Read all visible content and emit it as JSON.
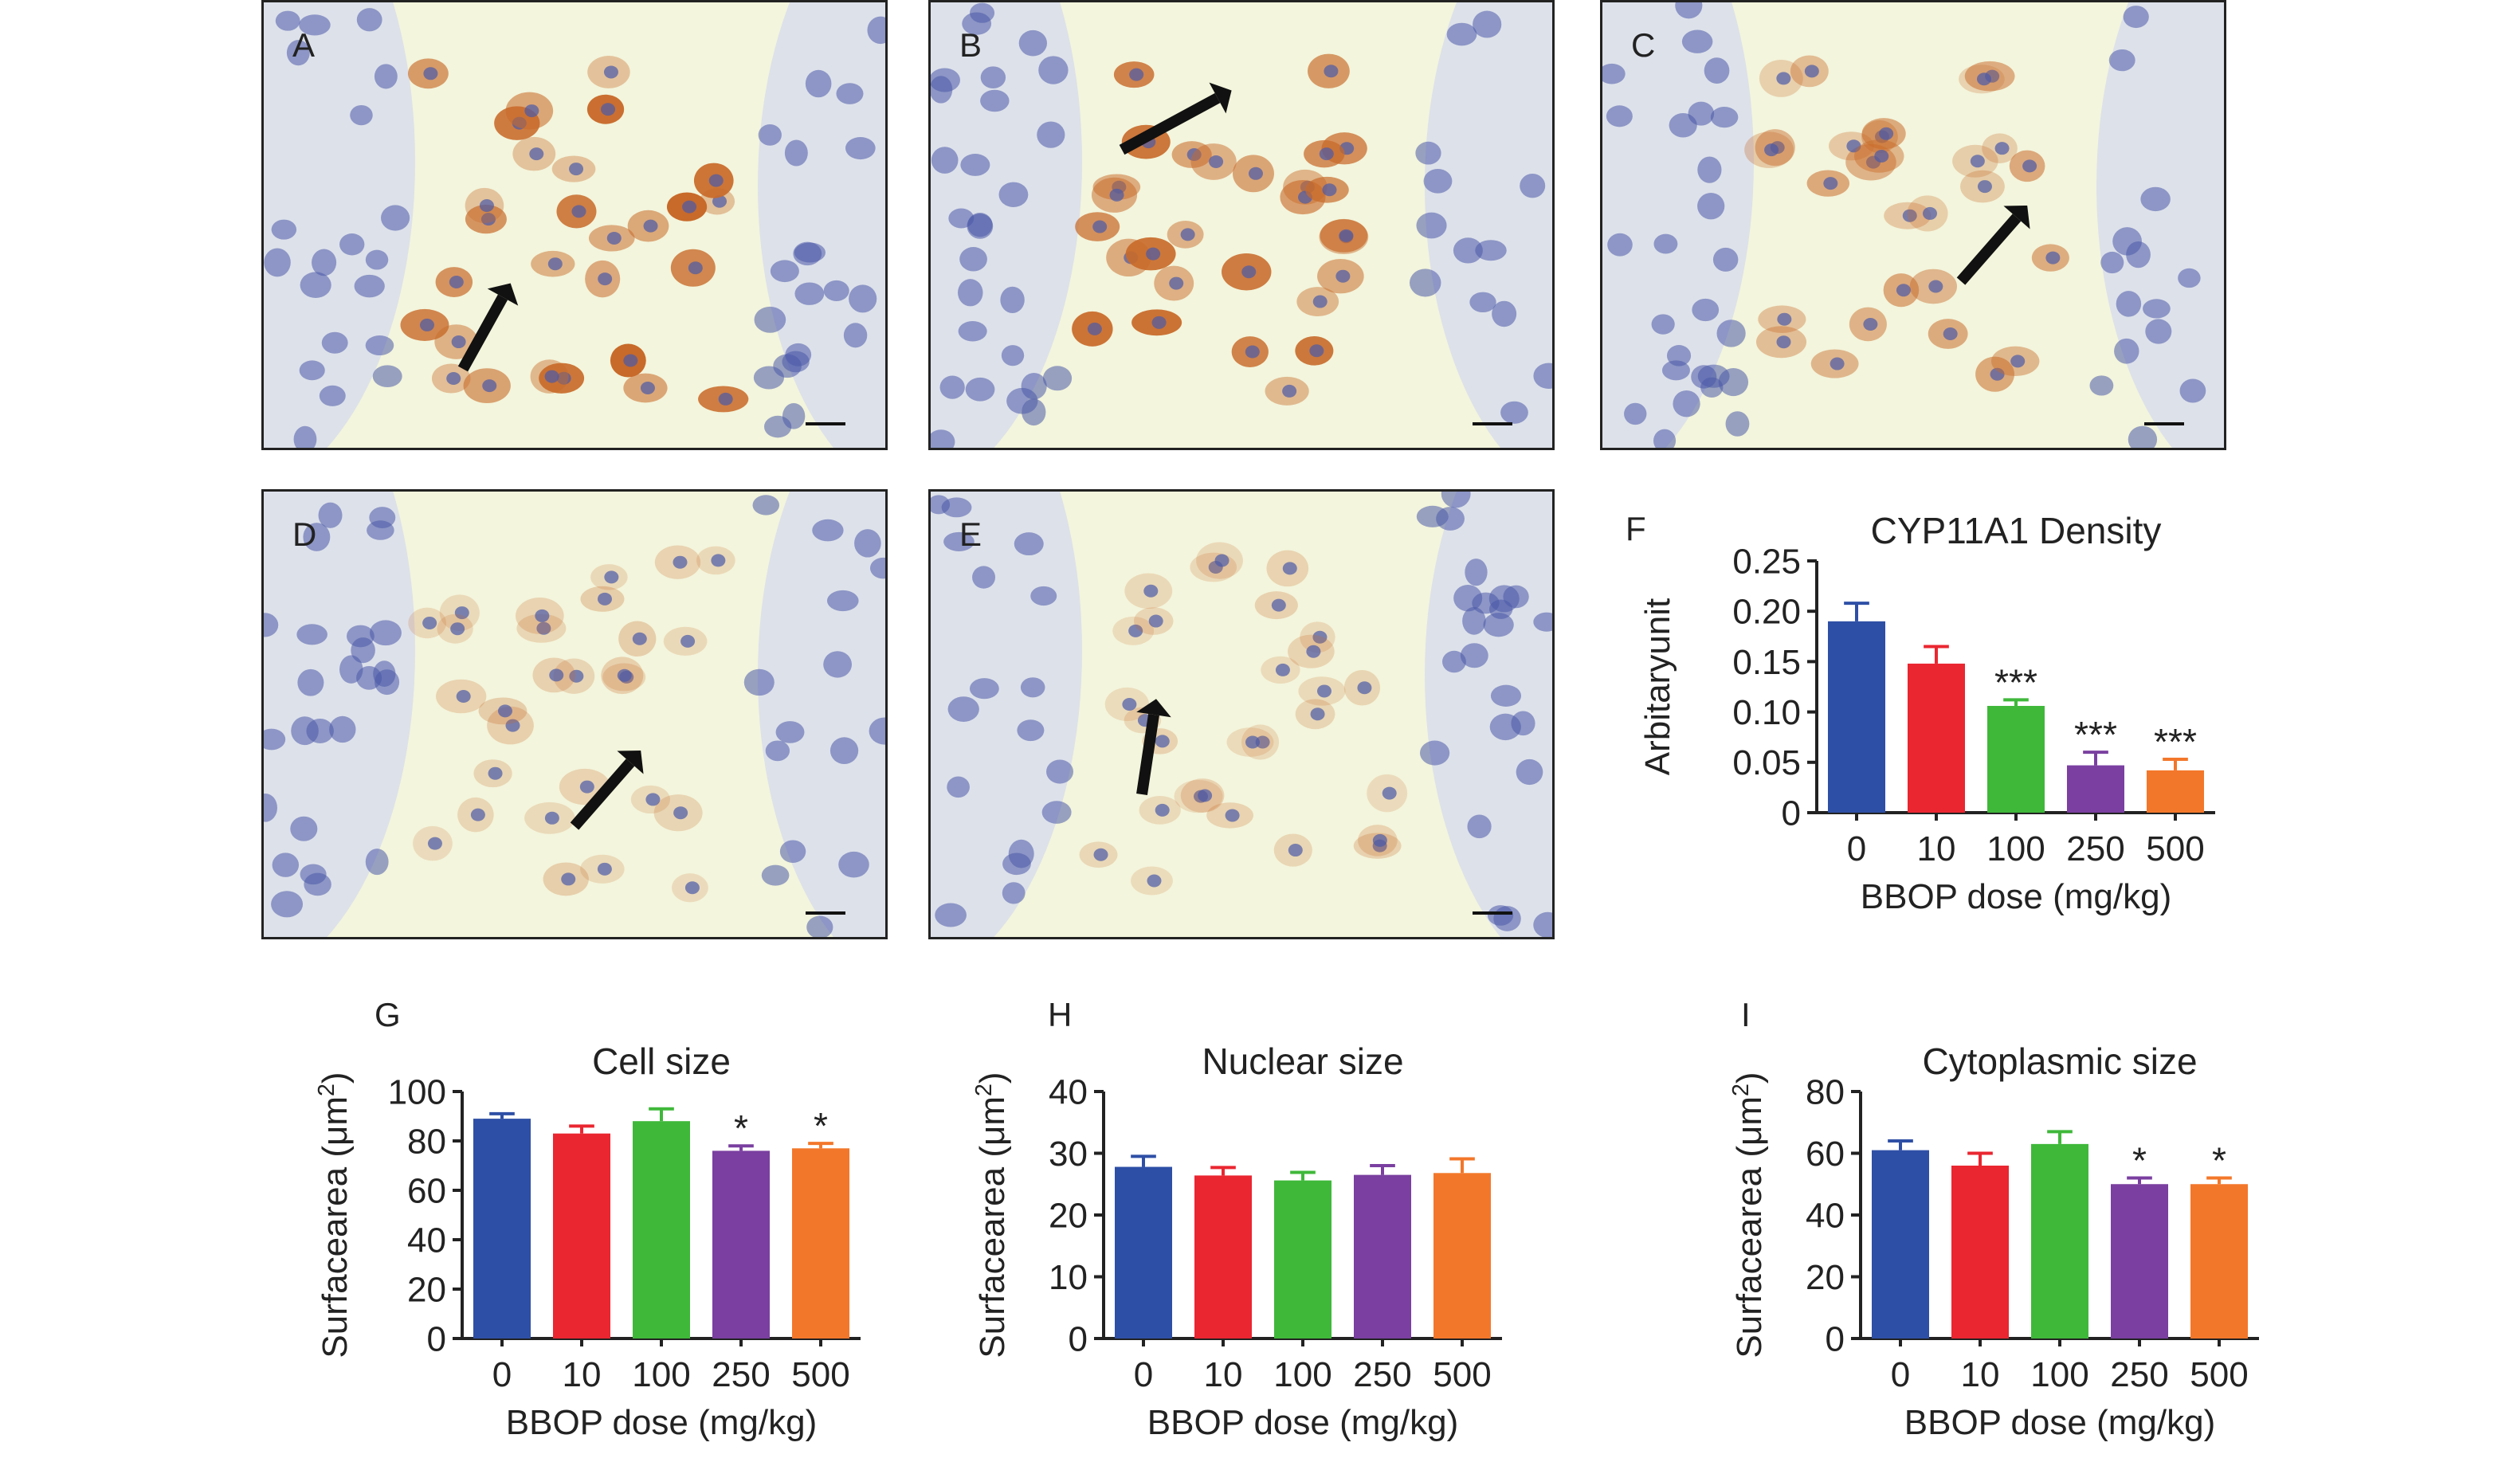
{
  "image_panels": [
    {
      "label": "A"
    },
    {
      "label": "B"
    },
    {
      "label": "C"
    },
    {
      "label": "D"
    },
    {
      "label": "E"
    }
  ],
  "chart_panel_letters": [
    "F",
    "G",
    "H",
    "I"
  ],
  "colors": {
    "dose_0": "#2e4fa6",
    "dose_10": "#ea2630",
    "dose_100": "#3fb83a",
    "dose_250": "#7a3fa0",
    "dose_500": "#f3772a",
    "axis": "#222222",
    "tissue_background": "#f3f5dc",
    "tubule": "#dde1ea",
    "stain_brown": "#c86a2a",
    "nucleus_blue": "#4a5aa8"
  },
  "chart_data": [
    {
      "type": "bar",
      "panel": "F",
      "title": "CYP11A1 Density",
      "xlabel": "BBOP dose (mg/kg)",
      "ylabel": "Arbitaryunit",
      "categories": [
        "0",
        "10",
        "100",
        "250",
        "500"
      ],
      "values": [
        0.19,
        0.148,
        0.106,
        0.047,
        0.042
      ],
      "errors": [
        0.018,
        0.017,
        0.006,
        0.013,
        0.011
      ],
      "significance": [
        "",
        "",
        "***",
        "***",
        "***"
      ],
      "ylim": [
        0,
        0.25
      ],
      "yticks": [
        "0",
        "0.05",
        "0.10",
        "0.15",
        "0.20",
        "0.25"
      ]
    },
    {
      "type": "bar",
      "panel": "G",
      "title": "Cell size",
      "xlabel": "BBOP dose (mg/kg)",
      "ylabel": "Surfacearea (μm²)",
      "categories": [
        "0",
        "10",
        "100",
        "250",
        "500"
      ],
      "values": [
        89,
        83,
        88,
        76,
        77
      ],
      "errors": [
        2,
        3,
        5,
        2,
        2
      ],
      "significance": [
        "",
        "",
        "",
        "*",
        "*"
      ],
      "ylim": [
        0,
        100
      ],
      "yticks": [
        "0",
        "20",
        "40",
        "60",
        "80",
        "100"
      ]
    },
    {
      "type": "bar",
      "panel": "H",
      "title": "Nuclear size",
      "xlabel": "BBOP dose (mg/kg)",
      "ylabel": "Surfacearea (μm²)",
      "categories": [
        "0",
        "10",
        "100",
        "250",
        "500"
      ],
      "values": [
        27.8,
        26.4,
        25.6,
        26.5,
        26.8
      ],
      "errors": [
        1.7,
        1.3,
        1.3,
        1.5,
        2.3
      ],
      "significance": [
        "",
        "",
        "",
        "",
        ""
      ],
      "ylim": [
        0,
        40
      ],
      "yticks": [
        "0",
        "10",
        "20",
        "30",
        "40"
      ]
    },
    {
      "type": "bar",
      "panel": "I",
      "title": "Cytoplasmic size",
      "xlabel": "BBOP dose (mg/kg)",
      "ylabel": "Surfacearea (μm²)",
      "categories": [
        "0",
        "10",
        "100",
        "250",
        "500"
      ],
      "values": [
        61,
        56,
        63,
        50,
        50
      ],
      "errors": [
        3,
        4,
        4,
        2,
        2
      ],
      "significance": [
        "",
        "",
        "",
        "*",
        "*"
      ],
      "ylim": [
        0,
        80
      ],
      "yticks": [
        "0",
        "20",
        "40",
        "60",
        "80"
      ]
    }
  ]
}
